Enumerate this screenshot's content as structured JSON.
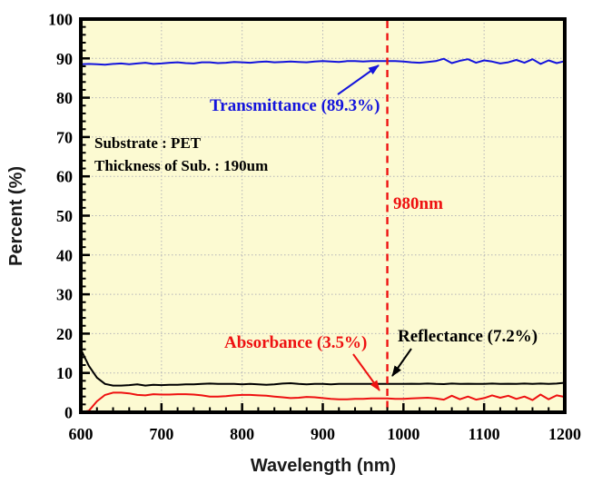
{
  "chart_data": {
    "type": "line",
    "title": "",
    "xlabel": "Wavelength (nm)",
    "ylabel": "Percent (%)",
    "xlim": [
      600,
      1200
    ],
    "ylim": [
      0,
      100
    ],
    "x_major_ticks": [
      600,
      700,
      800,
      900,
      1000,
      1100,
      1200
    ],
    "y_major_ticks": [
      0,
      10,
      20,
      30,
      40,
      50,
      60,
      70,
      80,
      90,
      100
    ],
    "x_minor_tick_step": 20,
    "y_minor_tick_step": 2,
    "grid": "dotted-majors",
    "legend": "none",
    "plot_background_color": "#fcfad2",
    "grid_color": "#b4b4b8",
    "axis_color": "#000000",
    "x": [
      600,
      610,
      620,
      630,
      640,
      650,
      660,
      670,
      680,
      690,
      700,
      710,
      720,
      730,
      740,
      750,
      760,
      770,
      780,
      790,
      800,
      810,
      820,
      830,
      840,
      850,
      860,
      870,
      880,
      890,
      900,
      910,
      920,
      930,
      940,
      950,
      960,
      970,
      980,
      990,
      1000,
      1010,
      1020,
      1030,
      1040,
      1050,
      1060,
      1070,
      1080,
      1090,
      1100,
      1110,
      1120,
      1130,
      1140,
      1150,
      1160,
      1170,
      1180,
      1190,
      1200
    ],
    "series": [
      {
        "name": "Transmittance",
        "color": "#1414dc",
        "value_at_980nm": 89.3,
        "values": [
          88.5,
          88.6,
          88.5,
          88.4,
          88.6,
          88.7,
          88.5,
          88.7,
          88.9,
          88.6,
          88.7,
          88.9,
          89.0,
          88.8,
          88.7,
          89.0,
          89.0,
          88.8,
          88.9,
          89.1,
          89.0,
          88.9,
          89.1,
          89.2,
          89.0,
          89.1,
          89.2,
          89.1,
          89.0,
          89.2,
          89.3,
          89.2,
          89.1,
          89.3,
          89.3,
          89.2,
          89.3,
          89.3,
          89.3,
          89.3,
          89.2,
          89.0,
          88.9,
          89.1,
          89.3,
          89.9,
          88.8,
          89.4,
          89.8,
          88.9,
          89.5,
          89.2,
          88.7,
          89.0,
          89.6,
          88.9,
          89.8,
          88.6,
          89.5,
          88.8,
          89.3
        ]
      },
      {
        "name": "Reflectance",
        "color": "#000000",
        "value_at_980nm": 7.2,
        "values": [
          16.0,
          11.8,
          8.8,
          7.2,
          6.8,
          6.8,
          6.9,
          7.1,
          6.8,
          7.0,
          6.9,
          7.0,
          7.0,
          7.1,
          7.1,
          7.2,
          7.3,
          7.2,
          7.2,
          7.2,
          7.1,
          7.2,
          7.1,
          7.0,
          7.1,
          7.3,
          7.4,
          7.2,
          7.1,
          7.2,
          7.2,
          7.1,
          7.2,
          7.2,
          7.2,
          7.2,
          7.2,
          7.2,
          7.2,
          7.2,
          7.2,
          7.25,
          7.2,
          7.3,
          7.2,
          7.15,
          7.3,
          7.2,
          7.25,
          7.2,
          7.2,
          7.3,
          7.2,
          7.25,
          7.2,
          7.3,
          7.2,
          7.3,
          7.2,
          7.3,
          7.5
        ]
      },
      {
        "name": "Absorbance",
        "color": "#ee1111",
        "value_at_980nm": 3.5,
        "values": [
          0,
          0.4,
          2.8,
          4.4,
          5.0,
          5.0,
          4.8,
          4.4,
          4.3,
          4.6,
          4.5,
          4.5,
          4.6,
          4.6,
          4.5,
          4.3,
          4.0,
          4.0,
          4.1,
          4.3,
          4.4,
          4.4,
          4.3,
          4.2,
          4.0,
          3.8,
          3.6,
          3.7,
          3.9,
          3.8,
          3.6,
          3.4,
          3.3,
          3.3,
          3.4,
          3.4,
          3.5,
          3.5,
          3.5,
          3.4,
          3.4,
          3.5,
          3.6,
          3.7,
          3.5,
          3.2,
          4.2,
          3.3,
          4.0,
          3.2,
          3.6,
          4.3,
          3.7,
          4.2,
          3.4,
          4.0,
          3.1,
          4.5,
          3.3,
          4.3,
          3.9
        ]
      }
    ],
    "reference_line": {
      "x_nm": 980,
      "label": "980nm",
      "color": "#ee1111",
      "style": "dashed"
    },
    "annotations": {
      "transmittance": {
        "label": "Transmittance (89.3%)",
        "color": "#1414dc"
      },
      "reflectance": {
        "label": "Reflectance (7.2%)",
        "color": "#000000"
      },
      "absorbance": {
        "label": "Absorbance (3.5%)",
        "color": "#ee1111"
      },
      "substrate_line1": "Substrate : PET",
      "substrate_line2": "Thickness of Sub. : 190um"
    }
  }
}
